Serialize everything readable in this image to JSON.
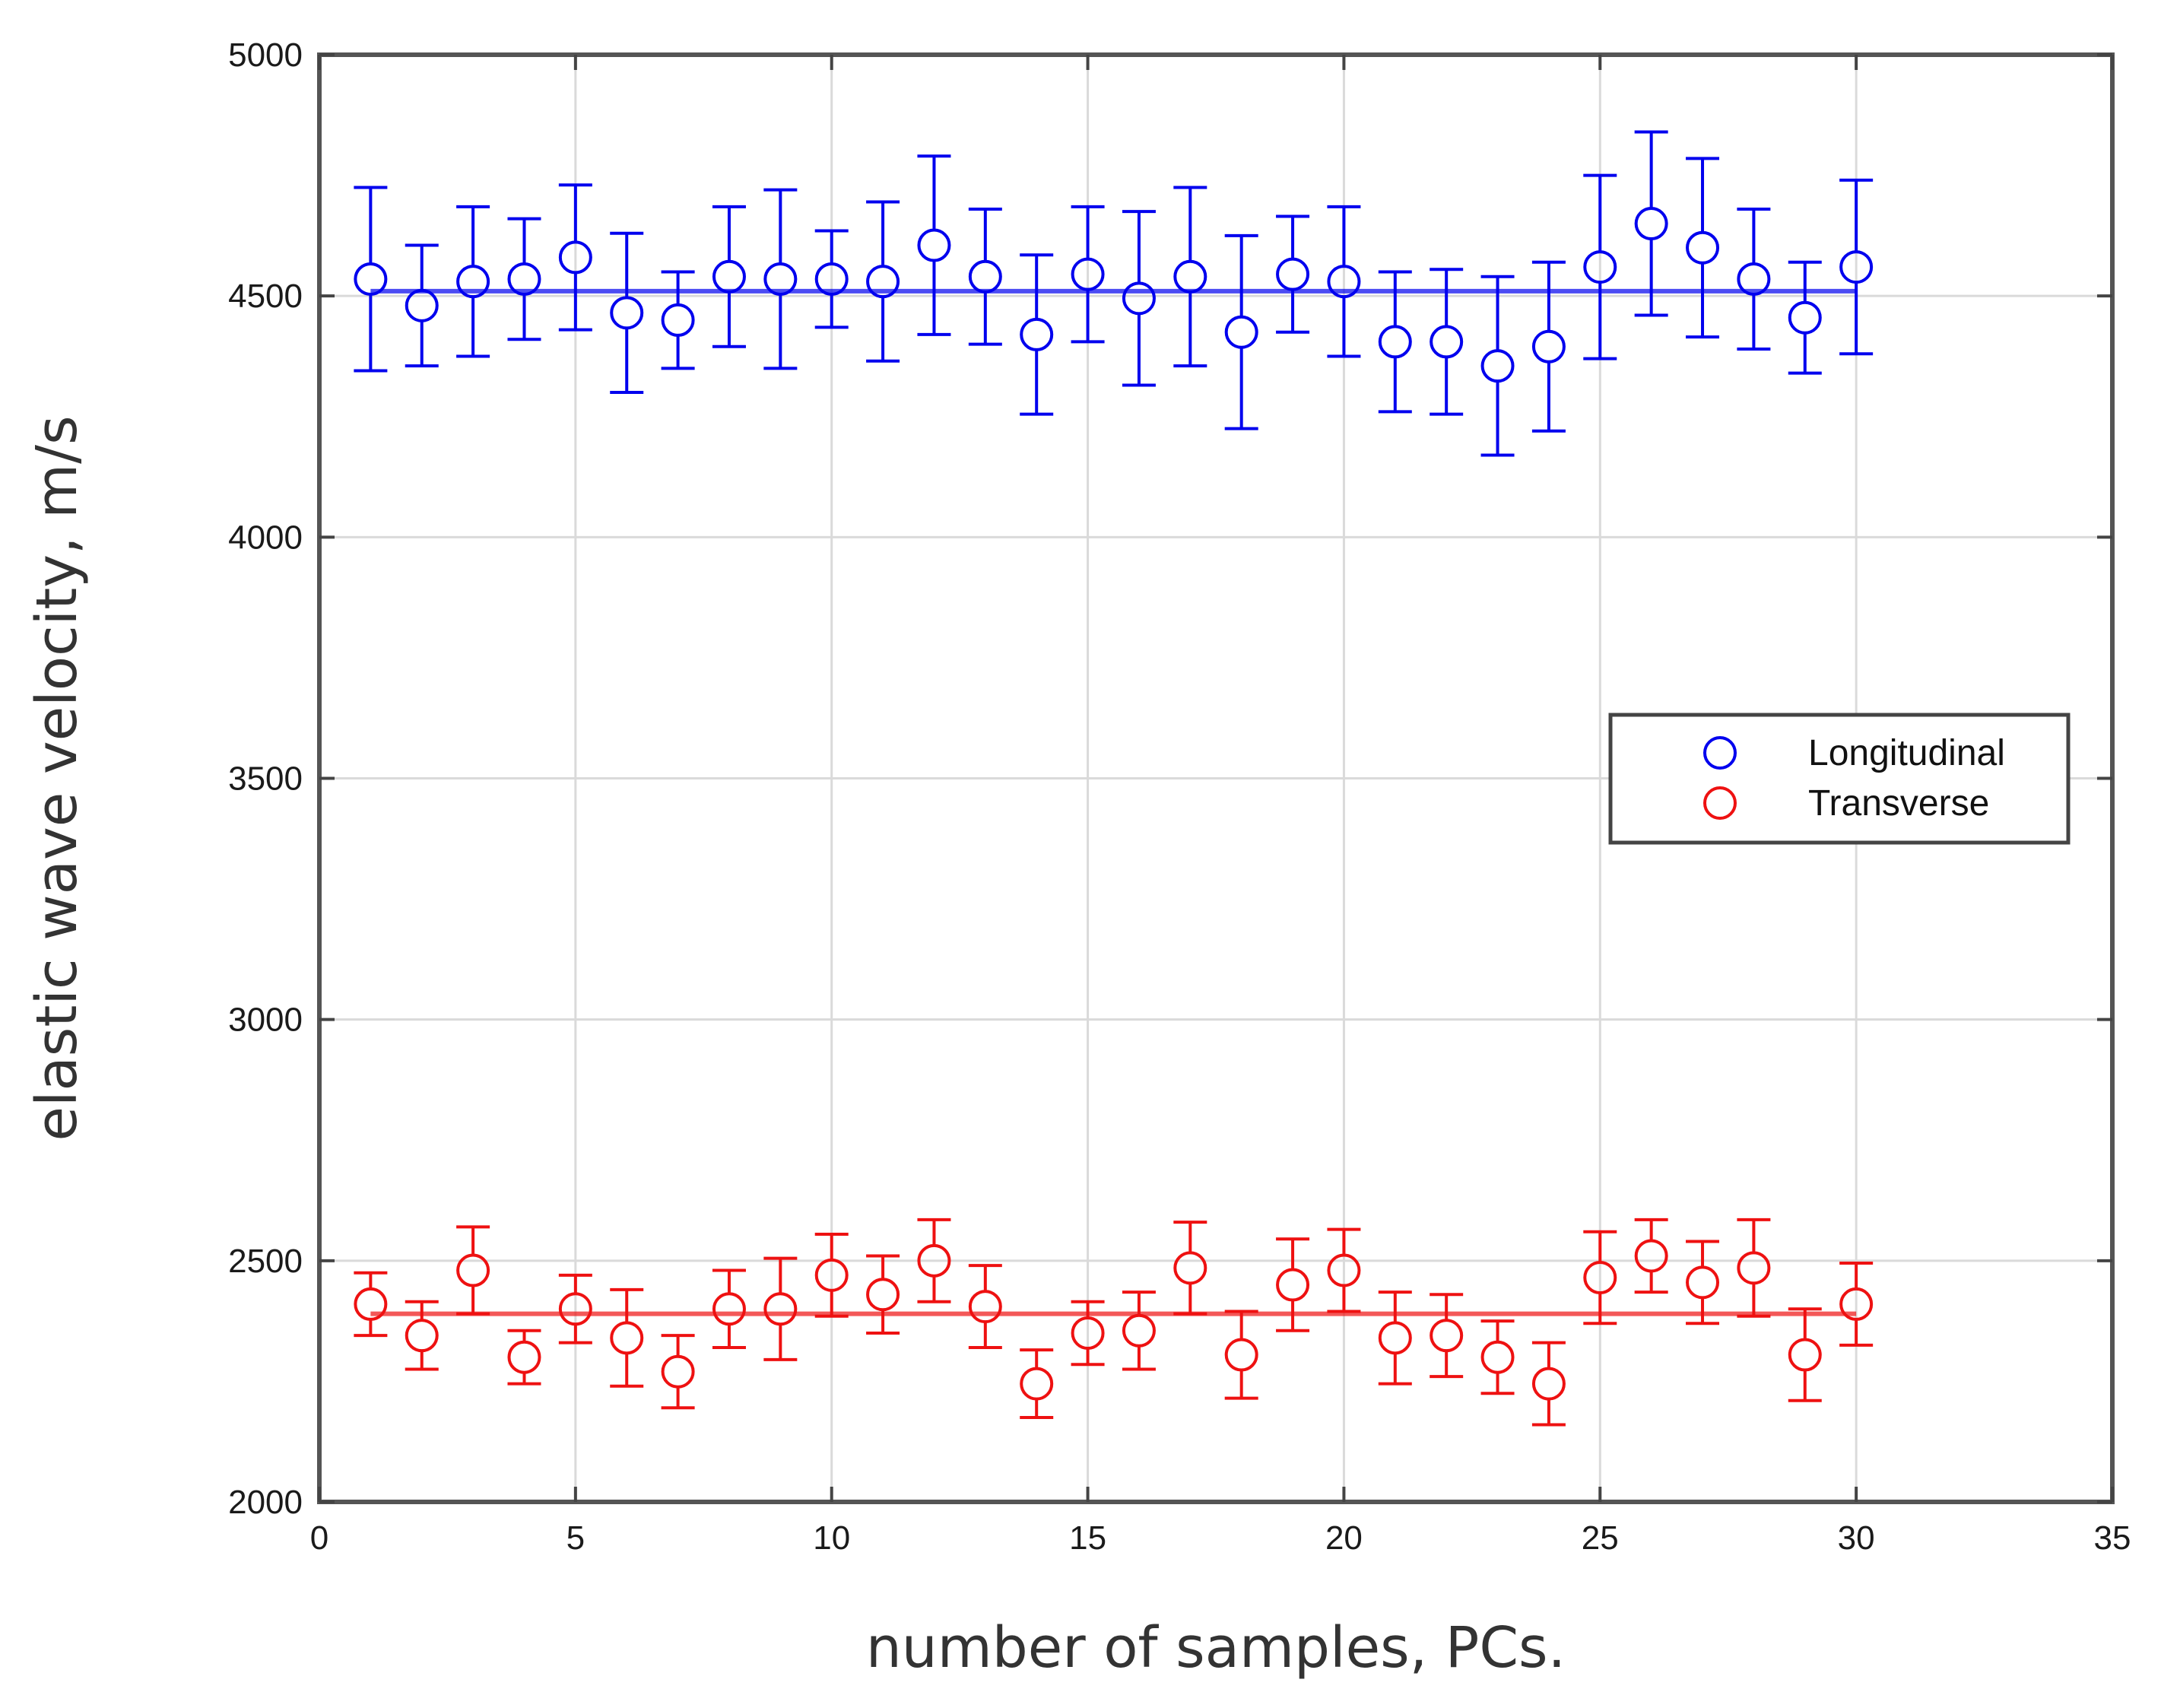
{
  "chart_data": {
    "type": "scatter",
    "title": "",
    "xlabel": "number of samples, PCs.",
    "ylabel": "elastic wave velocity, m/s",
    "xlim": [
      0,
      35
    ],
    "ylim": [
      2000,
      5000
    ],
    "xticks": [
      0,
      5,
      10,
      15,
      20,
      25,
      30,
      35
    ],
    "yticks": [
      2000,
      2500,
      3000,
      3500,
      4000,
      4500,
      5000
    ],
    "grid": true,
    "legend_position": "right",
    "x": [
      1,
      2,
      3,
      4,
      5,
      6,
      7,
      8,
      9,
      10,
      11,
      12,
      13,
      14,
      15,
      16,
      17,
      18,
      19,
      20,
      21,
      22,
      23,
      24,
      25,
      26,
      27,
      28,
      29,
      30
    ],
    "series": [
      {
        "name": "Longitudinal",
        "color": "#0000ee",
        "mean_line": 4510,
        "values": [
          4535,
          4480,
          4530,
          4535,
          4580,
          4465,
          4450,
          4540,
          4535,
          4535,
          4530,
          4605,
          4540,
          4420,
          4545,
          4495,
          4540,
          4425,
          4545,
          4530,
          4405,
          4405,
          4355,
          4395,
          4560,
          4650,
          4600,
          4535,
          4455,
          4560
        ],
        "errors": [
          190,
          125,
          155,
          125,
          150,
          165,
          100,
          145,
          185,
          100,
          165,
          185,
          140,
          165,
          140,
          180,
          185,
          200,
          120,
          155,
          145,
          150,
          185,
          175,
          190,
          190,
          185,
          145,
          115,
          180
        ]
      },
      {
        "name": "Transverse",
        "color": "#ee1111",
        "mean_line": 2390,
        "values": [
          2410,
          2345,
          2480,
          2300,
          2400,
          2340,
          2270,
          2400,
          2400,
          2470,
          2430,
          2500,
          2405,
          2245,
          2350,
          2355,
          2485,
          2305,
          2450,
          2480,
          2340,
          2345,
          2300,
          2245,
          2465,
          2510,
          2455,
          2485,
          2305,
          2410
        ],
        "errors": [
          65,
          70,
          90,
          55,
          70,
          100,
          75,
          80,
          105,
          85,
          80,
          85,
          85,
          70,
          65,
          80,
          95,
          90,
          95,
          85,
          95,
          85,
          75,
          85,
          95,
          75,
          85,
          100,
          95,
          85
        ]
      }
    ]
  }
}
